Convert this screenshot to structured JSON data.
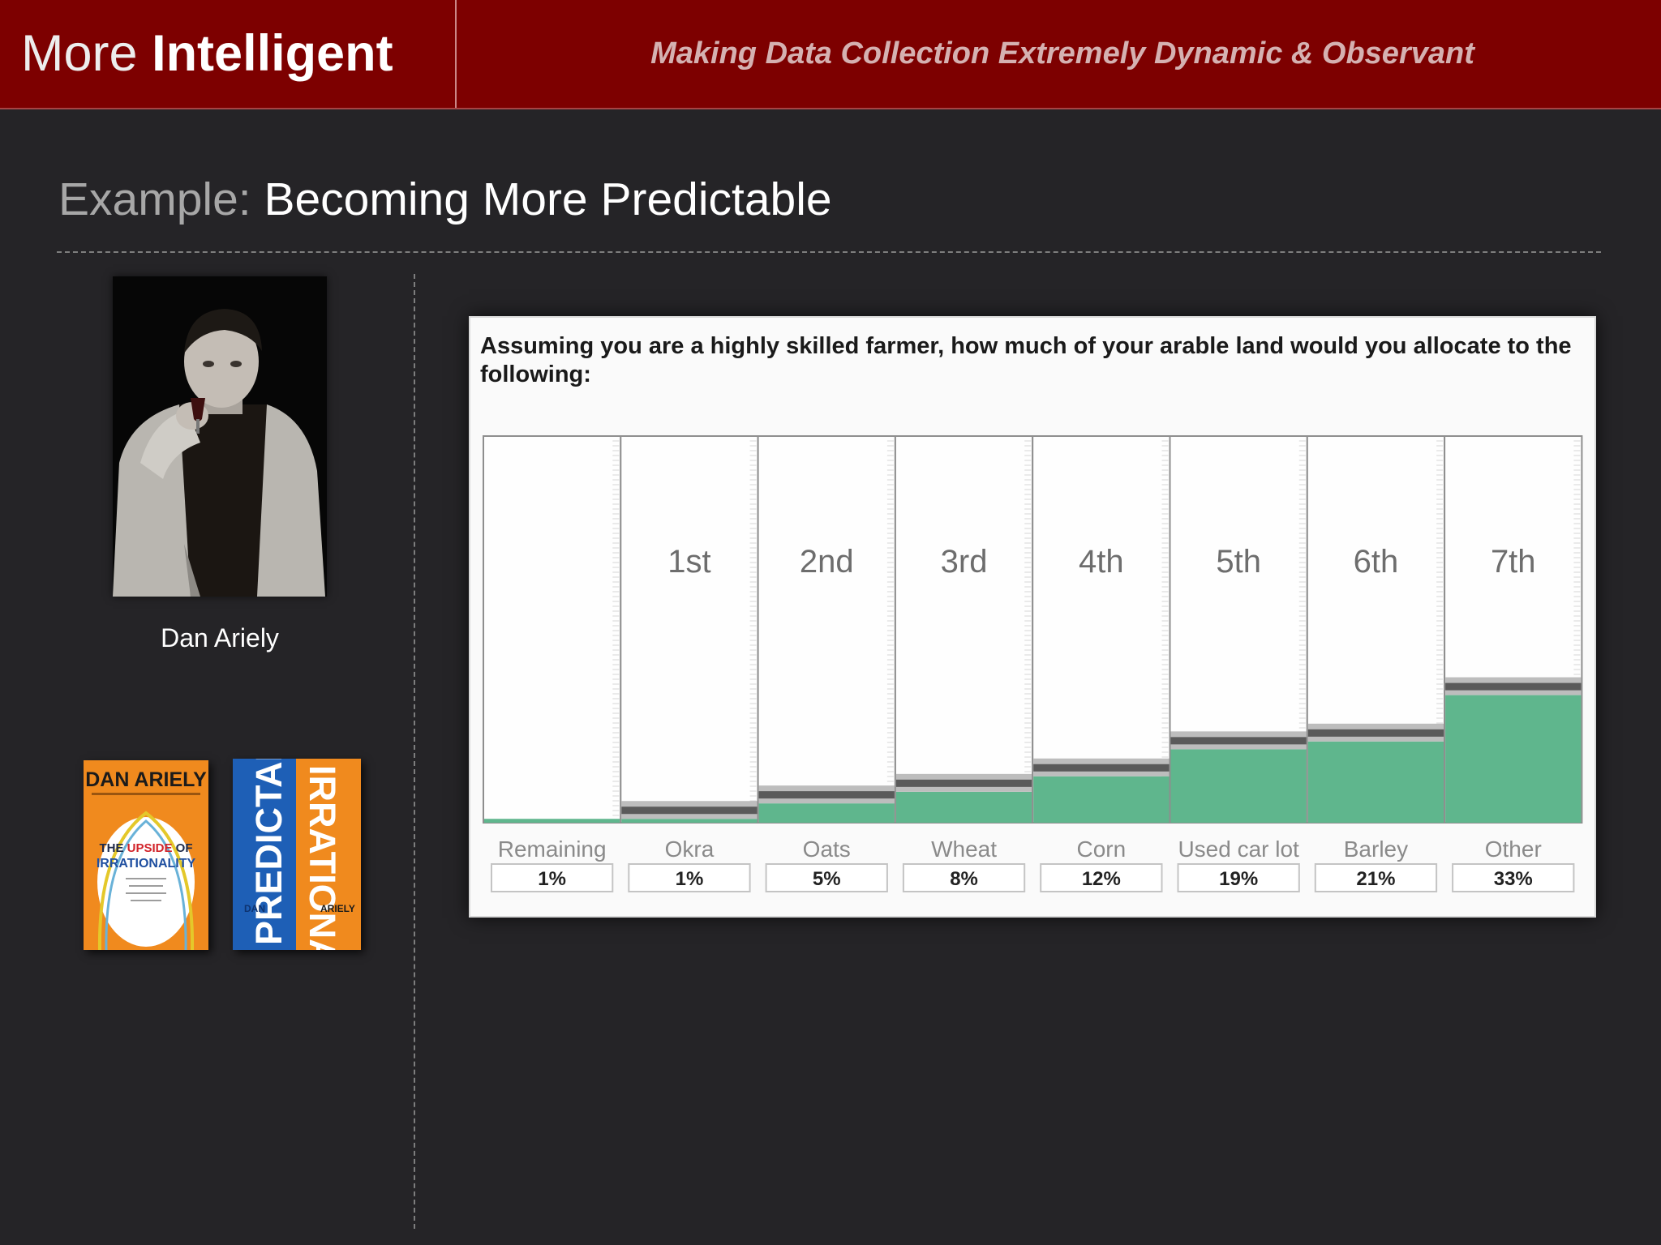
{
  "header": {
    "brand_light": "More",
    "brand_bold": "Intelligent",
    "tagline": "Making Data Collection Extremely Dynamic & Observant"
  },
  "slide": {
    "title_prefix": "Example:",
    "title_main": "Becoming More Predictable"
  },
  "sidebar": {
    "person_name": "Dan Ariely",
    "book1": {
      "author": "DAN ARIELY",
      "title_line1_a": "THE",
      "title_line1_b": "UPSIDE",
      "title_line1_c": "OF",
      "title_line2": "IRRATIONALITY"
    },
    "book2": {
      "title_a": "PREDICTABLY",
      "title_b": "IRRATIONAL",
      "author_first": "DAN",
      "author_last": "ARIELY"
    }
  },
  "survey": {
    "question": "Assuming you are a highly skilled farmer, how much of your arable land would you allocate to the following:"
  },
  "chart_data": {
    "type": "bar",
    "categories": [
      "Remaining",
      "Okra",
      "Oats",
      "Wheat",
      "Corn",
      "Used car lot",
      "Barley",
      "Other"
    ],
    "rank_labels": [
      "",
      "1st",
      "2nd",
      "3rd",
      "4th",
      "5th",
      "6th",
      "7th"
    ],
    "values": [
      1,
      1,
      5,
      8,
      12,
      19,
      21,
      33
    ],
    "value_labels": [
      "1%",
      "1%",
      "5%",
      "8%",
      "12%",
      "19%",
      "21%",
      "33%"
    ],
    "ylim": [
      0,
      100
    ],
    "bar_color": "#5fb68d",
    "handle_color": "#5a5a5a"
  },
  "colors": {
    "header_bg": "#7d0000",
    "page_bg": "#252427"
  }
}
